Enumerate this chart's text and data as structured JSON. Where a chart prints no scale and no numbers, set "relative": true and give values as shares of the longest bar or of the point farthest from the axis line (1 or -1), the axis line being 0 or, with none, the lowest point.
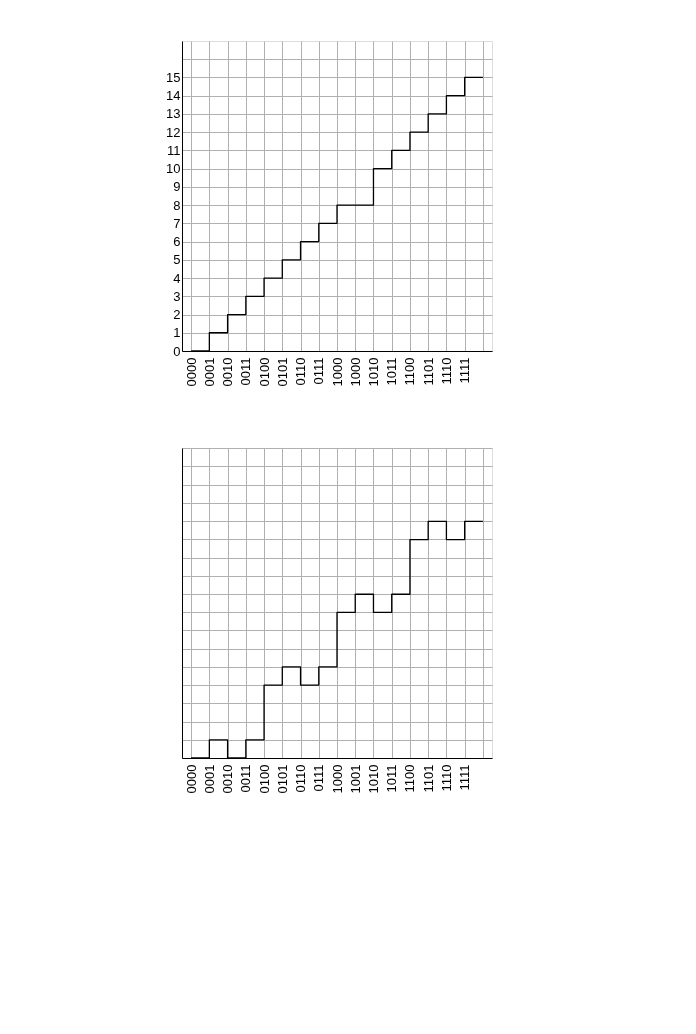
{
  "chart_data": [
    {
      "type": "step",
      "categories": [
        "0000",
        "0001",
        "0010",
        "0011",
        "0100",
        "0101",
        "0110",
        "0111",
        "1000",
        "1000",
        "1010",
        "1011",
        "1100",
        "1101",
        "1110",
        "1111",
        null
      ],
      "series": [
        {
          "color": "#000000",
          "values": [
            0,
            1,
            2,
            3,
            4,
            5,
            6,
            7,
            8,
            8,
            10,
            11,
            12,
            13,
            14,
            15,
            15
          ]
        }
      ],
      "ylim": [
        0,
        17
      ],
      "yticks": [
        0,
        1,
        2,
        3,
        4,
        5,
        6,
        7,
        8,
        9,
        10,
        11,
        12,
        13,
        14,
        15,
        {
          "value": 16,
          "label": null
        }
      ],
      "grid": true,
      "legend": false
    },
    {
      "type": "step",
      "categories": [
        "0000",
        "0001",
        "0010",
        "0011",
        "0100",
        "0101",
        "0110",
        "0111",
        "1000",
        "1001",
        "1010",
        "1011",
        "1100",
        "1101",
        "1110",
        "1111",
        null
      ],
      "series": [
        {
          "color": "#000000",
          "values": [
            0,
            0.077,
            0,
            0.077,
            0.308,
            0.385,
            0.308,
            0.385,
            0.615,
            0.692,
            0.615,
            0.692,
            0.923,
            1,
            0.923,
            1,
            1
          ]
        }
      ],
      "relative": true,
      "grid": true,
      "tick_labels": "x",
      "legend": false
    }
  ]
}
